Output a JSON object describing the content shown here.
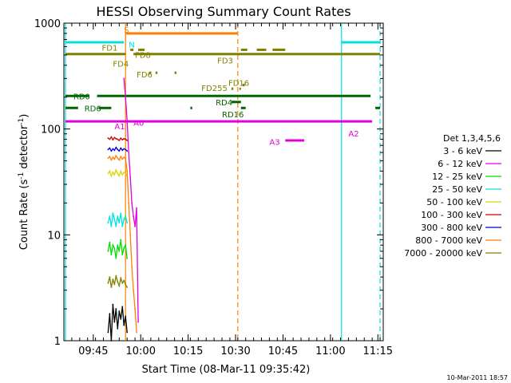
{
  "chart_data": {
    "type": "line",
    "title": "HESSI Observing Summary Count Rates",
    "xlabel": "Start Time (08-Mar-11 09:35:42)",
    "ylabel_main": "Count Rate (s",
    "ylabel_sup1": "-1",
    "ylabel_mid": " detector",
    "ylabel_sup2": "-1",
    "ylabel_end": ")",
    "yscale": "log",
    "ylim": [
      1,
      1000
    ],
    "y_ticks": [
      {
        "v": 1,
        "label": "1"
      },
      {
        "v": 10,
        "label": "10"
      },
      {
        "v": 100,
        "label": "100"
      },
      {
        "v": 1000,
        "label": "1000"
      }
    ],
    "xlim_minutes": [
      0,
      101
    ],
    "x_ticks": [
      {
        "m": 9.3,
        "label": "09:45"
      },
      {
        "m": 24.3,
        "label": "10:00"
      },
      {
        "m": 39.3,
        "label": "10:15"
      },
      {
        "m": 54.3,
        "label": "10:30"
      },
      {
        "m": 69.3,
        "label": "10:45"
      },
      {
        "m": 84.3,
        "label": "11:00"
      },
      {
        "m": 99.3,
        "label": "11:15"
      }
    ],
    "footer_timestamp": "10-Mar-2011 18:57",
    "legend": {
      "title": "Det 1,3,4,5,6",
      "placement": "right",
      "items": [
        {
          "label": "3 - 6 keV",
          "color": "#000000"
        },
        {
          "label": "6 - 12 keV",
          "color": "#e000e0"
        },
        {
          "label": "12 - 25 keV",
          "color": "#00dd00"
        },
        {
          "label": "25 - 50 keV",
          "color": "#00e0e0"
        },
        {
          "label": "50 - 100 keV",
          "color": "#d8d800"
        },
        {
          "label": "100 - 300 keV",
          "color": "#cc0000"
        },
        {
          "label": "300 - 800 keV",
          "color": "#0000cc"
        },
        {
          "label": "800 - 7000 keV",
          "color": "#ff8000"
        },
        {
          "label": "7000 - 20000 keV",
          "color": "#808000"
        }
      ]
    },
    "series": [
      {
        "name": "3 - 6 keV",
        "color": "#000000",
        "x": [
          14.0,
          14.5,
          15.0,
          15.5,
          16.0,
          16.5,
          17.0,
          17.5,
          18.0,
          18.5,
          19.0,
          19.5,
          20.0
        ],
        "y": [
          1.2,
          1.8,
          1.0,
          2.2,
          1.5,
          2.0,
          1.3,
          1.9,
          1.6,
          2.1,
          1.4,
          1.7,
          1.2
        ]
      },
      {
        "name": "6 - 12 keV",
        "color": "#e000e0",
        "x": [
          19.0,
          19.5,
          20.0,
          20.5,
          21.0,
          21.5,
          22.0,
          22.5,
          23.0,
          23.5
        ],
        "y": [
          300,
          200,
          120,
          60,
          35,
          20,
          15,
          12,
          18,
          1.5
        ]
      },
      {
        "name": "12 - 25 keV",
        "color": "#00dd00",
        "x": [
          14.0,
          14.5,
          15.0,
          15.5,
          16.0,
          16.5,
          17.0,
          17.5,
          18.0,
          18.5,
          19.0,
          19.5,
          20.0
        ],
        "y": [
          7,
          8.5,
          6.5,
          8,
          7.5,
          6,
          8,
          7,
          9,
          6.5,
          7.5,
          8,
          6
        ]
      },
      {
        "name": "25 - 50 keV",
        "color": "#00e0e0",
        "x": [
          14.0,
          14.5,
          15.0,
          15.5,
          16.0,
          16.5,
          17.0,
          17.5,
          18.0,
          18.5,
          19.0,
          19.5,
          20.0
        ],
        "y": [
          13,
          15,
          12,
          16,
          14,
          12,
          15,
          13,
          16,
          12,
          14,
          15,
          13
        ]
      },
      {
        "name": "50 - 100 keV",
        "color": "#d8d800",
        "x": [
          14.0,
          14.5,
          15.0,
          15.5,
          16.0,
          16.5,
          17.0,
          17.5,
          18.0,
          18.5,
          19.0,
          19.5,
          20.0
        ],
        "y": [
          38,
          40,
          36,
          39,
          37,
          41,
          38,
          36,
          40,
          37,
          39,
          38,
          36
        ]
      },
      {
        "name": "100 - 300 keV",
        "color": "#cc0000",
        "x": [
          14.0,
          14.5,
          15.0,
          15.5,
          16.0,
          16.5,
          17.0,
          17.5,
          18.0,
          18.5,
          19.0,
          19.5,
          20.0
        ],
        "y": [
          82,
          80,
          84,
          79,
          83,
          81,
          80,
          78,
          82,
          79,
          81,
          80,
          78
        ]
      },
      {
        "name": "300 - 800 keV",
        "color": "#0000cc",
        "x": [
          14.0,
          14.5,
          15.0,
          15.5,
          16.0,
          16.5,
          17.0,
          17.5,
          18.0,
          18.5,
          19.0,
          19.5,
          20.0
        ],
        "y": [
          64,
          66,
          62,
          65,
          63,
          67,
          64,
          62,
          66,
          63,
          65,
          64,
          62
        ]
      },
      {
        "name": "800 - 7000 keV",
        "color": "#ff8000",
        "x": [
          14.0,
          14.5,
          15.0,
          15.5,
          16.0,
          16.5,
          17.0,
          17.5,
          18.0,
          18.5,
          19.0,
          19.5,
          20.0,
          20.5,
          21.0,
          21.5,
          22.0,
          22.5,
          23.0
        ],
        "y": [
          53,
          55,
          51,
          54,
          52,
          56,
          53,
          51,
          55,
          52,
          54,
          53,
          40,
          20,
          10,
          5,
          3,
          2,
          1.2
        ]
      },
      {
        "name": "7000 - 20000 keV",
        "color": "#808000",
        "x": [
          14.0,
          14.5,
          15.0,
          15.5,
          16.0,
          16.5,
          17.0,
          17.5,
          18.0,
          18.5,
          19.0,
          19.5,
          20.0
        ],
        "y": [
          3.5,
          4.0,
          3.2,
          3.8,
          3.4,
          4.1,
          3.6,
          3.3,
          3.9,
          3.5,
          3.7,
          3.4,
          3.2
        ]
      }
    ],
    "flag_bars": [
      {
        "label": "S",
        "color": "#ff8000",
        "y": 800,
        "segments": [
          [
            19.5,
            55.0
          ]
        ],
        "label_at": [
          19.0,
          870
        ]
      },
      {
        "label": "N",
        "color": "#00e0e0",
        "y": 660,
        "segments": [
          [
            0.5,
            19.0
          ],
          [
            87.8,
            100.0
          ]
        ],
        "label_at": [
          20.5,
          630
        ]
      },
      {
        "label": "FD1",
        "color": "#808000",
        "y": 560,
        "segments": [
          [
            21.0,
            22.0
          ],
          [
            23.5,
            25.5
          ],
          [
            56.0,
            58.0
          ],
          [
            61.0,
            64.0
          ],
          [
            66.0,
            70.0
          ]
        ],
        "label_at": [
          12.0,
          590
        ]
      },
      {
        "label": "FD8",
        "color": "#808000",
        "y": 510,
        "segments": [
          [
            0.5,
            19.5
          ],
          [
            22.0,
            100.0
          ]
        ],
        "label_at": [
          22.5,
          505
        ]
      },
      {
        "label": "FD3",
        "color": "#808000",
        "y": 500,
        "segments": [],
        "label_at": [
          48.5,
          445
        ]
      },
      {
        "label": "FD4",
        "color": "#808000",
        "y": 390,
        "segments": [],
        "label_at": [
          15.5,
          415
        ]
      },
      {
        "label": "FD6",
        "color": "#808000",
        "y": 340,
        "segments": [
          [
            27.0,
            27.6
          ],
          [
            29.0,
            29.6
          ],
          [
            35.0,
            35.6
          ]
        ],
        "label_at": [
          23.0,
          330
        ]
      },
      {
        "label": "FD16",
        "color": "#808000",
        "y": 260,
        "segments": [
          [
            56.5,
            57.2
          ]
        ],
        "label_at": [
          52.0,
          275
        ]
      },
      {
        "label": "FD255",
        "color": "#808000",
        "y": 240,
        "segments": [
          [
            53.0,
            53.6
          ],
          [
            55.5,
            56.0
          ]
        ],
        "label_at": [
          43.5,
          245
        ]
      },
      {
        "label": "RD0",
        "color": "#006600",
        "y": 205,
        "segments": [
          [
            0.5,
            8.0
          ],
          [
            10.5,
            97.0
          ]
        ],
        "label_at": [
          3.0,
          205
        ]
      },
      {
        "label": "RD4",
        "color": "#006600",
        "y": 180,
        "segments": [
          [
            53.0,
            56.0
          ]
        ],
        "label_at": [
          48.0,
          180
        ]
      },
      {
        "label": "RD6",
        "color": "#006600",
        "y": 158,
        "segments": [
          [
            0.5,
            4.5
          ],
          [
            11.0,
            15.0
          ],
          [
            40.0,
            40.6
          ],
          [
            56.0,
            57.5
          ],
          [
            98.5,
            100.0
          ]
        ],
        "label_at": [
          6.5,
          158
        ]
      },
      {
        "label": "RD16",
        "color": "#006600",
        "y": 135,
        "segments": [],
        "label_at": [
          50.0,
          138
        ]
      },
      {
        "label": "A1",
        "color": "#e000e0",
        "y": 118,
        "segments": [
          [
            0.5,
            97.5
          ]
        ],
        "label_at": [
          16.0,
          107
        ]
      },
      {
        "label": "A2",
        "color": "#e000e0",
        "y": 98,
        "segments": [],
        "label_at": [
          90.0,
          91
        ]
      },
      {
        "label": "A3",
        "color": "#e000e0",
        "y": 78,
        "segments": [
          [
            70.0,
            76.0
          ]
        ],
        "label_at": [
          65.0,
          76
        ]
      },
      {
        "label": "A0",
        "color": "#e000e0",
        "y": 118,
        "segments": [],
        "label_at": [
          22.0,
          115
        ]
      }
    ],
    "markers": [
      {
        "label": "cyan-solid-start",
        "x": 0.5,
        "color": "#00e0e0",
        "dash": false
      },
      {
        "label": "orange-solid",
        "x": 19.5,
        "color": "#ff8000",
        "dash": false
      },
      {
        "label": "orange-dash",
        "x": 55.0,
        "color": "#ff8000",
        "dash": true
      },
      {
        "label": "cyan-solid-end",
        "x": 87.8,
        "color": "#00e0e0",
        "dash": false
      },
      {
        "label": "cyan-dash",
        "x": 100.0,
        "color": "#00e0e0",
        "dash": true
      }
    ]
  }
}
